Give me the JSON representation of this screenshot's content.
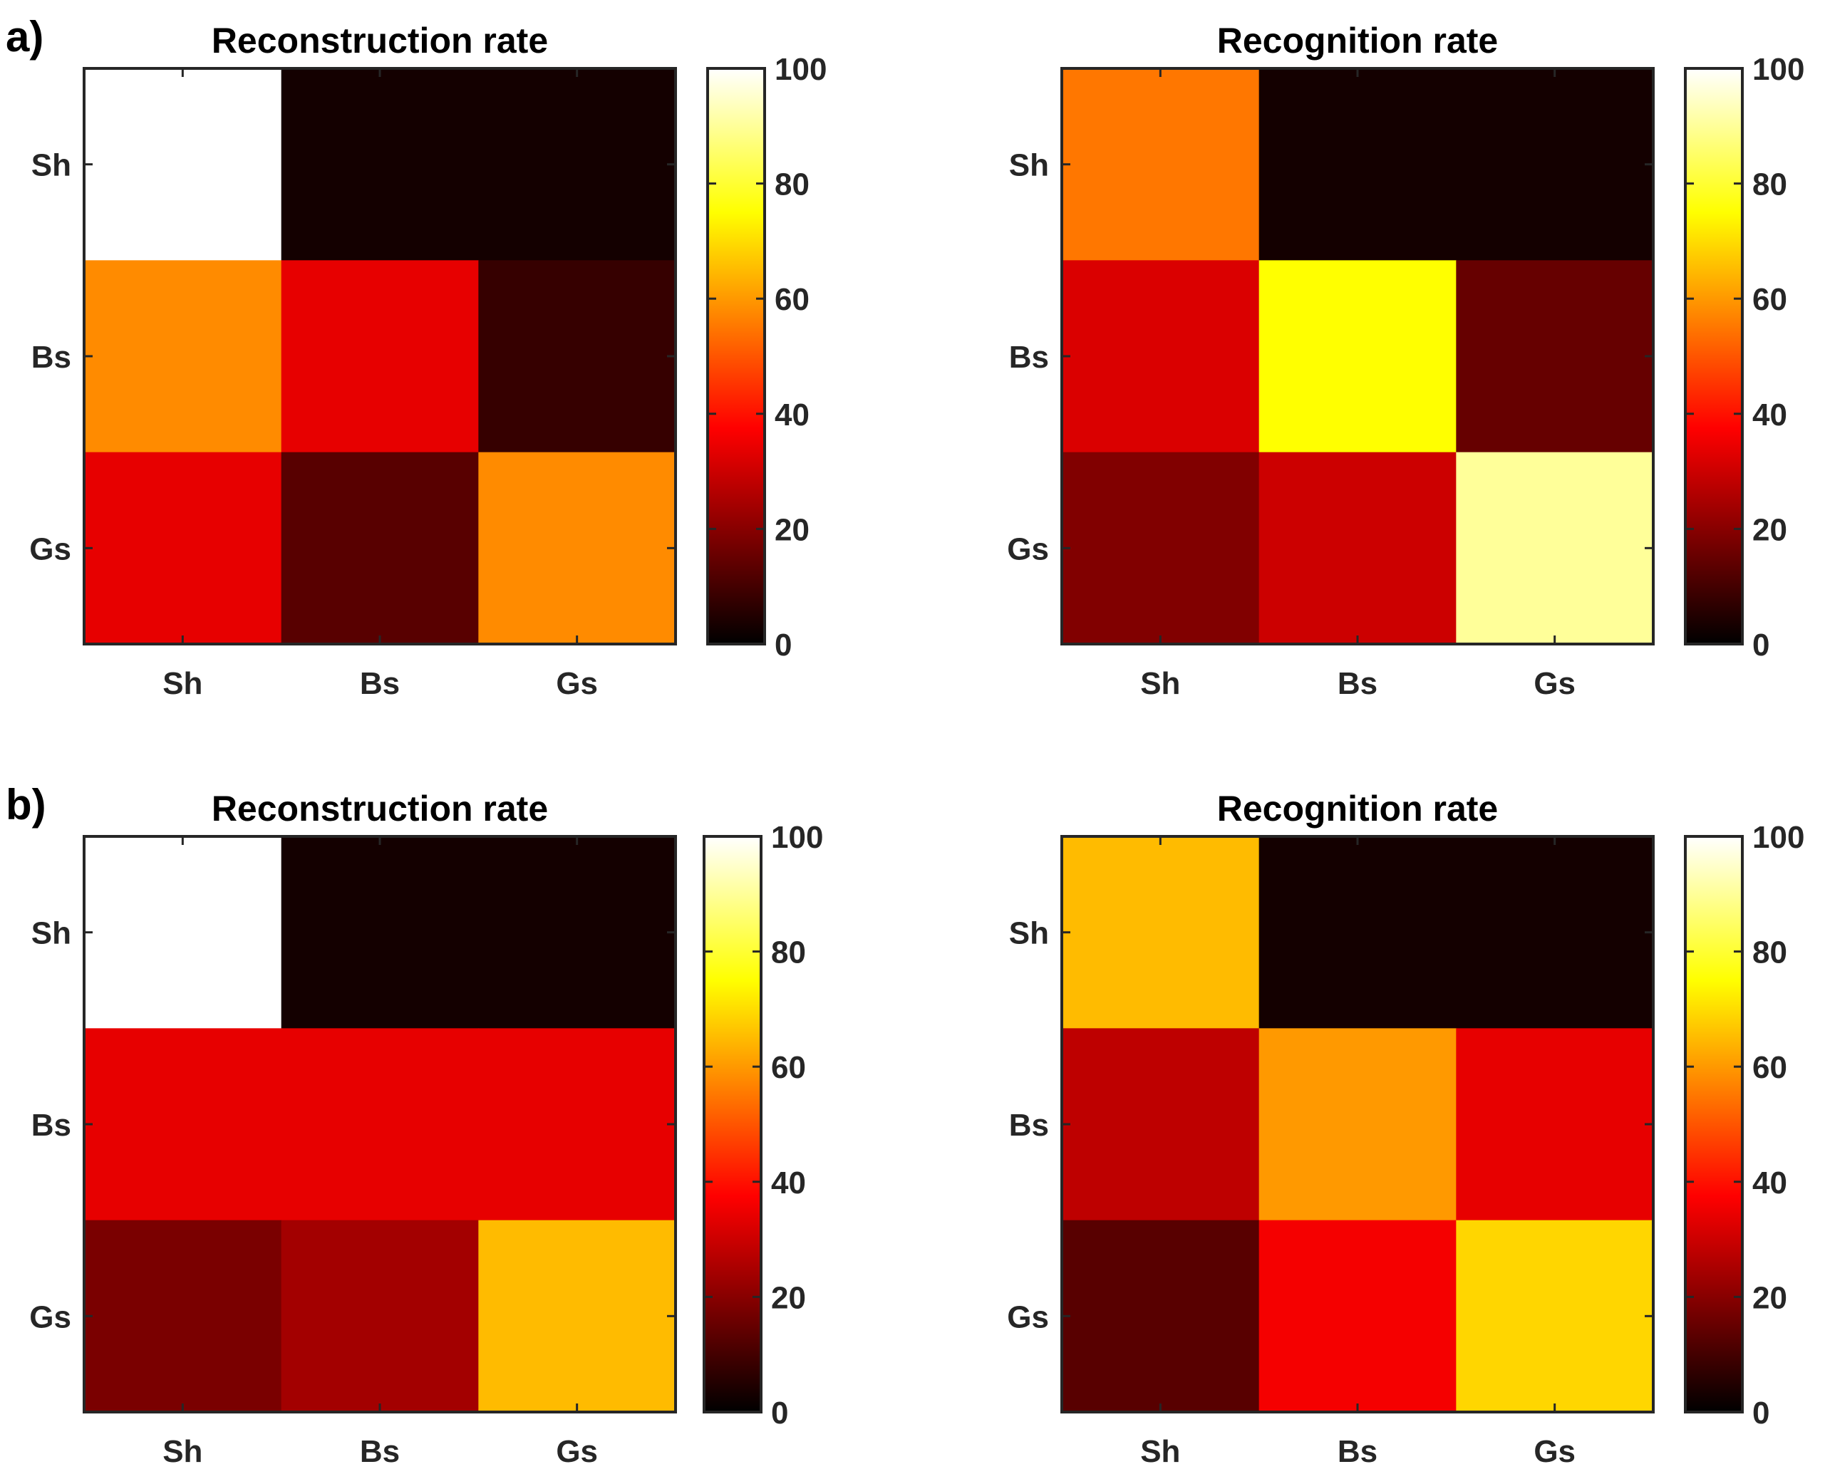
{
  "panel_labels": [
    "a)",
    "b)"
  ],
  "colormap": "hot",
  "chart_data": [
    {
      "type": "heatmap",
      "panel": "a)",
      "title": "Reconstruction rate",
      "x_categories": [
        "Sh",
        "Bs",
        "Gs"
      ],
      "y_categories": [
        "Sh",
        "Bs",
        "Gs"
      ],
      "values": [
        [
          100,
          3,
          3
        ],
        [
          58,
          34,
          8
        ],
        [
          34,
          13,
          58
        ]
      ],
      "colorbar": {
        "range": [
          0,
          100
        ],
        "ticks": [
          0,
          20,
          40,
          60,
          80,
          100
        ]
      }
    },
    {
      "type": "heatmap",
      "panel": "a)",
      "title": "Recognition rate",
      "x_categories": [
        "Sh",
        "Bs",
        "Gs"
      ],
      "y_categories": [
        "Sh",
        "Bs",
        "Gs"
      ],
      "values": [
        [
          55,
          3,
          3
        ],
        [
          32,
          75,
          15
        ],
        [
          19,
          30,
          90
        ]
      ],
      "colorbar": {
        "range": [
          0,
          100
        ],
        "ticks": [
          0,
          20,
          40,
          60,
          80,
          100
        ]
      }
    },
    {
      "type": "heatmap",
      "panel": "b)",
      "title": "Reconstruction rate",
      "x_categories": [
        "Sh",
        "Bs",
        "Gs"
      ],
      "y_categories": [
        "Sh",
        "Bs",
        "Gs"
      ],
      "values": [
        [
          100,
          3,
          3
        ],
        [
          34,
          34,
          34
        ],
        [
          18,
          24,
          65
        ]
      ],
      "colorbar": {
        "range": [
          0,
          100
        ],
        "ticks": [
          0,
          20,
          40,
          60,
          80,
          100
        ]
      }
    },
    {
      "type": "heatmap",
      "panel": "b)",
      "title": "Recognition rate",
      "x_categories": [
        "Sh",
        "Bs",
        "Gs"
      ],
      "y_categories": [
        "Sh",
        "Bs",
        "Gs"
      ],
      "values": [
        [
          65,
          3,
          3
        ],
        [
          28,
          60,
          34
        ],
        [
          13,
          36,
          69
        ]
      ],
      "colorbar": {
        "range": [
          0,
          100
        ],
        "ticks": [
          0,
          20,
          40,
          60,
          80,
          100
        ]
      }
    }
  ]
}
